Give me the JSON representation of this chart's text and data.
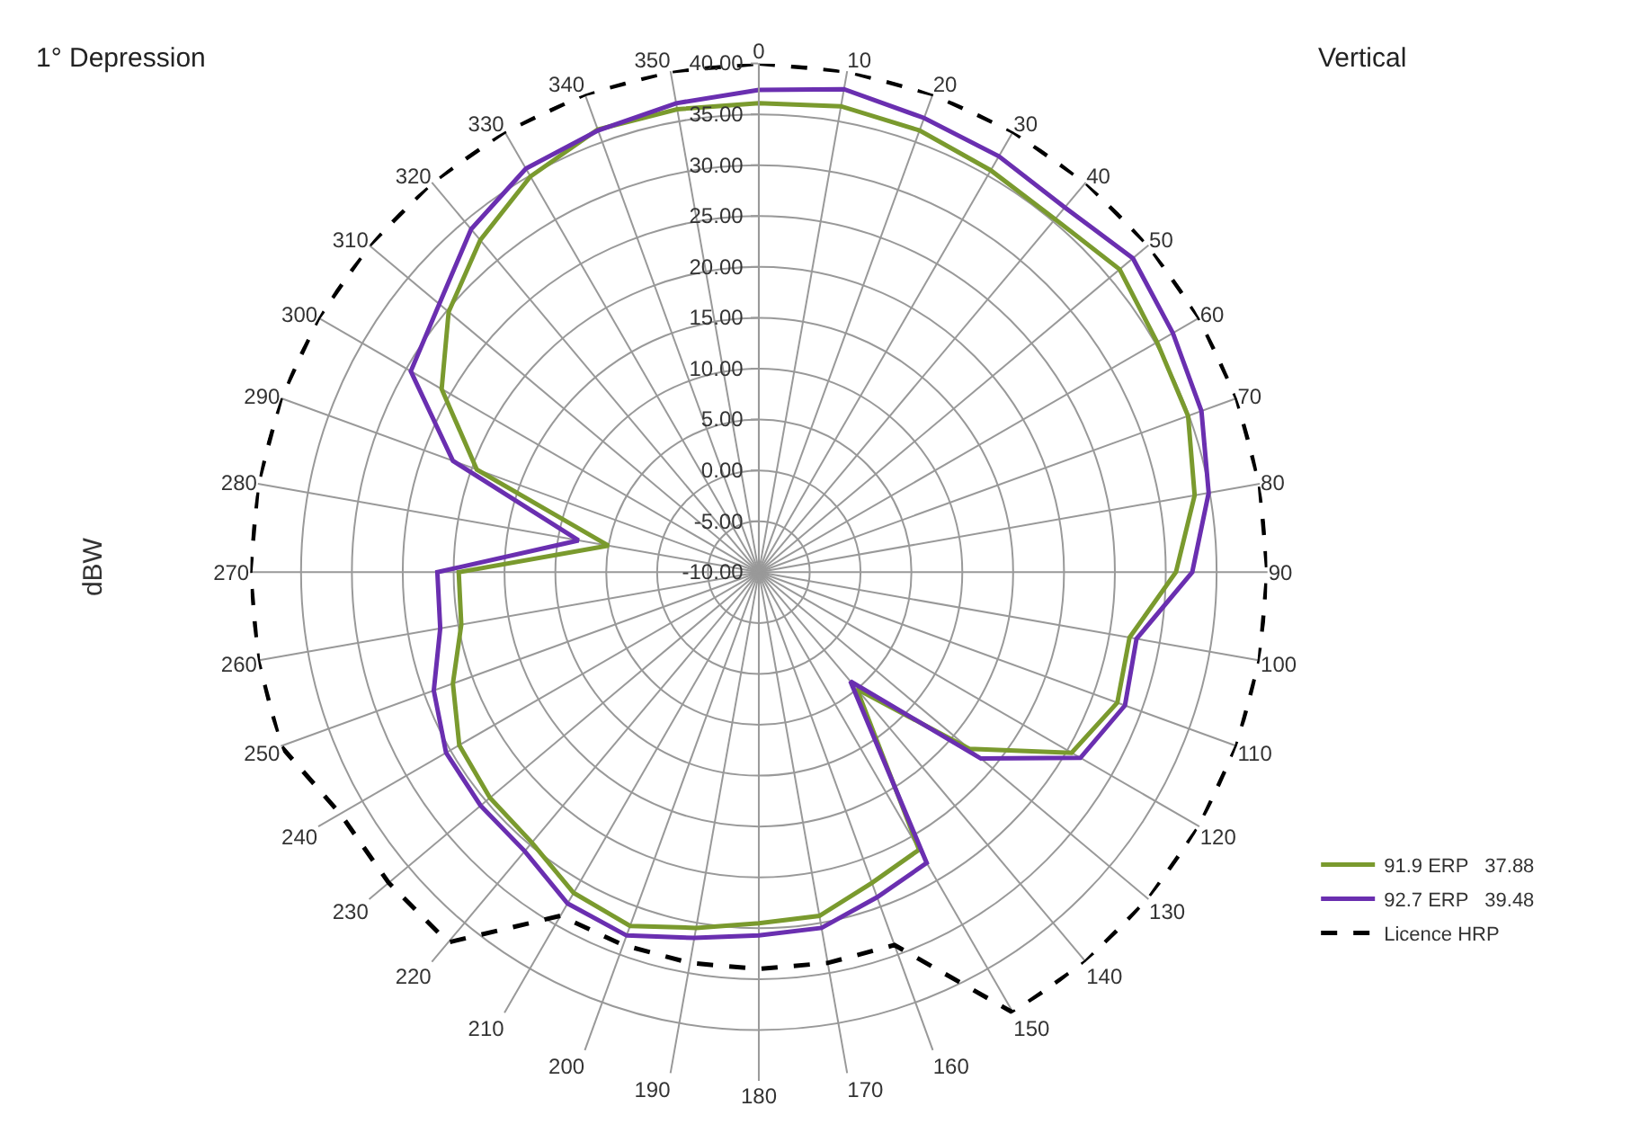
{
  "chart_data": {
    "type": "radar",
    "ylabel": "dBW",
    "annotations": [
      "1° Depression",
      "Vertical"
    ],
    "categories": [
      "0",
      "10",
      "20",
      "30",
      "40",
      "50",
      "60",
      "70",
      "80",
      "90",
      "100",
      "110",
      "120",
      "130",
      "140",
      "150",
      "160",
      "170",
      "180",
      "190",
      "200",
      "210",
      "220",
      "230",
      "240",
      "250",
      "260",
      "270",
      "280",
      "290",
      "300",
      "310",
      "320",
      "330",
      "340",
      "350"
    ],
    "ylim": [
      -10,
      40
    ],
    "yticks": [
      {
        "value": -10,
        "label": "-10.00"
      },
      {
        "value": -5,
        "label": "-5.00"
      },
      {
        "value": 0,
        "label": "0.00"
      },
      {
        "value": 5,
        "label": "5.00"
      },
      {
        "value": 10,
        "label": "10.00"
      },
      {
        "value": 15,
        "label": "15.00"
      },
      {
        "value": 20,
        "label": "20.00"
      },
      {
        "value": 25,
        "label": "25.00"
      },
      {
        "value": 30,
        "label": "30.00"
      },
      {
        "value": 35,
        "label": "35.00"
      },
      {
        "value": 40,
        "label": "40.00"
      }
    ],
    "grid": true,
    "legend": "bottom right",
    "marker": "none",
    "series": [
      {
        "name": "91.9 ERP   37.88",
        "color": "#7a9a2e",
        "line_style": "solid",
        "values": [
          36.1,
          36.5,
          36.2,
          35.6,
          35.3,
          36.3,
          35.2,
          34.9,
          33.5,
          31,
          27,
          27.5,
          25.5,
          17,
          5,
          21.5,
          22.5,
          24.3,
          24.5,
          25.5,
          27,
          26.4,
          24.7,
          24.5,
          24,
          22,
          19.7,
          19.5,
          5,
          19.5,
          26,
          29.8,
          32.6,
          34.9,
          36.3,
          36.2
        ]
      },
      {
        "name": "92.7 ERP   39.48",
        "color": "#6a2fb0",
        "line_style": "solid",
        "values": [
          37.4,
          38.2,
          37.5,
          37.2,
          36.8,
          38,
          37,
          36.3,
          34.9,
          32.6,
          27.7,
          28.3,
          26.5,
          18.5,
          4,
          23,
          24,
          25.5,
          25.7,
          26.5,
          28,
          27.6,
          25.8,
          25.7,
          25.5,
          24,
          21.8,
          21.6,
          8,
          22,
          29.5,
          31,
          34,
          35.8,
          36.2,
          36.8
        ]
      },
      {
        "name": "Licence HRP",
        "color": "#000000",
        "line_style": "dashed",
        "values": [
          40,
          40,
          40,
          40,
          40,
          40,
          40,
          40,
          40,
          40,
          40,
          40,
          40,
          40,
          40,
          40,
          29,
          29,
          29,
          29,
          29,
          29,
          37.5,
          37.5,
          37.5,
          40,
          40,
          40,
          40,
          40,
          40,
          40,
          40,
          40,
          40,
          40
        ]
      }
    ]
  }
}
